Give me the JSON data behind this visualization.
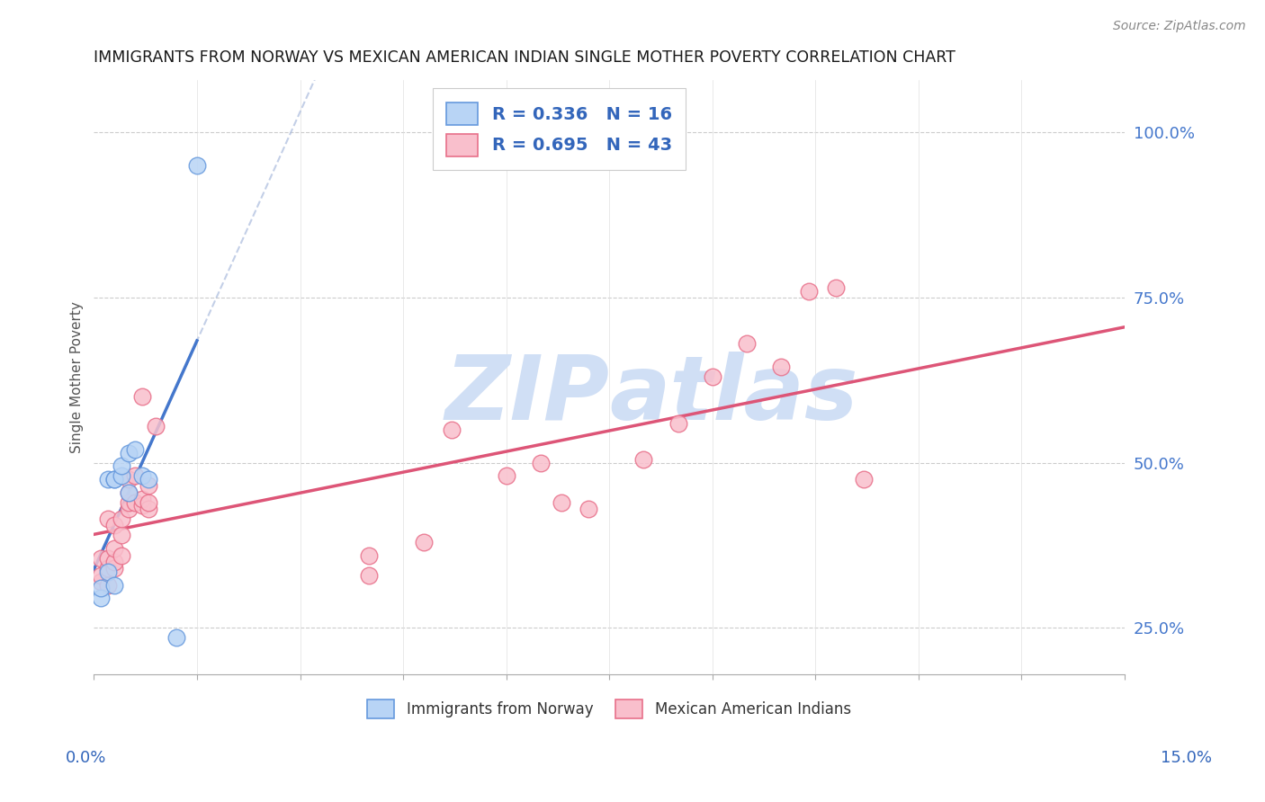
{
  "title": "IMMIGRANTS FROM NORWAY VS MEXICAN AMERICAN INDIAN SINGLE MOTHER POVERTY CORRELATION CHART",
  "source": "Source: ZipAtlas.com",
  "ylabel": "Single Mother Poverty",
  "norway_label": "Immigrants from Norway",
  "mexican_label": "Mexican American Indians",
  "xmin": 0.0,
  "xmax": 0.15,
  "ymin": 0.18,
  "ymax": 1.08,
  "right_yticks": [
    0.25,
    0.5,
    0.75,
    1.0
  ],
  "right_yticklabels": [
    "25.0%",
    "50.0%",
    "75.0%",
    "100.0%"
  ],
  "norway_R": 0.336,
  "norway_N": 16,
  "mexican_R": 0.695,
  "mexican_N": 43,
  "norway_color": "#b8d4f5",
  "mexican_color": "#f9bfcc",
  "norway_edge_color": "#6699dd",
  "mexican_edge_color": "#e8708a",
  "norway_line_color": "#4477cc",
  "mexican_line_color": "#dd5577",
  "watermark_color": "#d0dff5",
  "norway_x": [
    0.001,
    0.001,
    0.002,
    0.002,
    0.003,
    0.003,
    0.003,
    0.004,
    0.004,
    0.005,
    0.005,
    0.006,
    0.007,
    0.008,
    0.015,
    0.012
  ],
  "norway_y": [
    0.295,
    0.31,
    0.335,
    0.475,
    0.315,
    0.475,
    0.475,
    0.48,
    0.495,
    0.455,
    0.515,
    0.52,
    0.48,
    0.475,
    0.95,
    0.235
  ],
  "mexican_x": [
    0.001,
    0.001,
    0.001,
    0.002,
    0.002,
    0.002,
    0.002,
    0.003,
    0.003,
    0.003,
    0.003,
    0.004,
    0.004,
    0.004,
    0.005,
    0.005,
    0.005,
    0.005,
    0.006,
    0.006,
    0.007,
    0.007,
    0.007,
    0.008,
    0.008,
    0.008,
    0.009,
    0.04,
    0.04,
    0.048,
    0.052,
    0.06,
    0.065,
    0.068,
    0.072,
    0.08,
    0.085,
    0.09,
    0.095,
    0.1,
    0.104,
    0.108,
    0.112
  ],
  "mexican_y": [
    0.32,
    0.33,
    0.355,
    0.315,
    0.34,
    0.355,
    0.415,
    0.34,
    0.35,
    0.37,
    0.405,
    0.36,
    0.39,
    0.415,
    0.43,
    0.44,
    0.455,
    0.475,
    0.44,
    0.48,
    0.435,
    0.445,
    0.6,
    0.43,
    0.44,
    0.465,
    0.555,
    0.33,
    0.36,
    0.38,
    0.55,
    0.48,
    0.5,
    0.44,
    0.43,
    0.505,
    0.56,
    0.63,
    0.68,
    0.645,
    0.76,
    0.765,
    0.475
  ]
}
